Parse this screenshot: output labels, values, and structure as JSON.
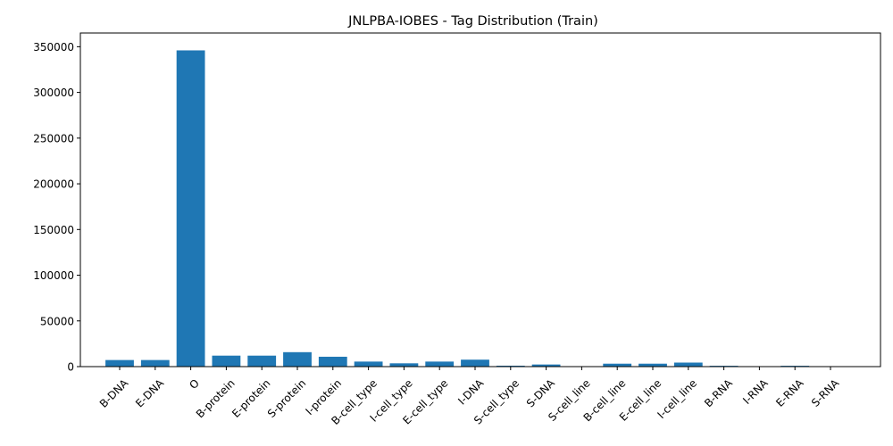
{
  "chart_data": {
    "type": "bar",
    "title": "JNLPBA-IOBES - Tag Distribution (Train)",
    "xlabel": "",
    "ylabel": "",
    "categories": [
      "B-DNA",
      "E-DNA",
      "O",
      "B-protein",
      "E-protein",
      "S-protein",
      "I-protein",
      "B-cell_type",
      "I-cell_type",
      "E-cell_type",
      "I-DNA",
      "S-cell_type",
      "S-DNA",
      "S-cell_line",
      "B-cell_line",
      "E-cell_line",
      "I-cell_line",
      "B-RNA",
      "I-RNA",
      "E-RNA",
      "S-RNA"
    ],
    "values": [
      7200,
      7200,
      346000,
      12000,
      12000,
      15800,
      10800,
      5500,
      3600,
      5500,
      7600,
      1000,
      2300,
      400,
      3200,
      3200,
      4400,
      900,
      200,
      900,
      200
    ],
    "ylim": [
      0,
      365000
    ],
    "yticks": [
      0,
      50000,
      100000,
      150000,
      200000,
      250000,
      300000,
      350000
    ],
    "bar_color": "#1f77b4",
    "grid": false,
    "legend": "none"
  }
}
